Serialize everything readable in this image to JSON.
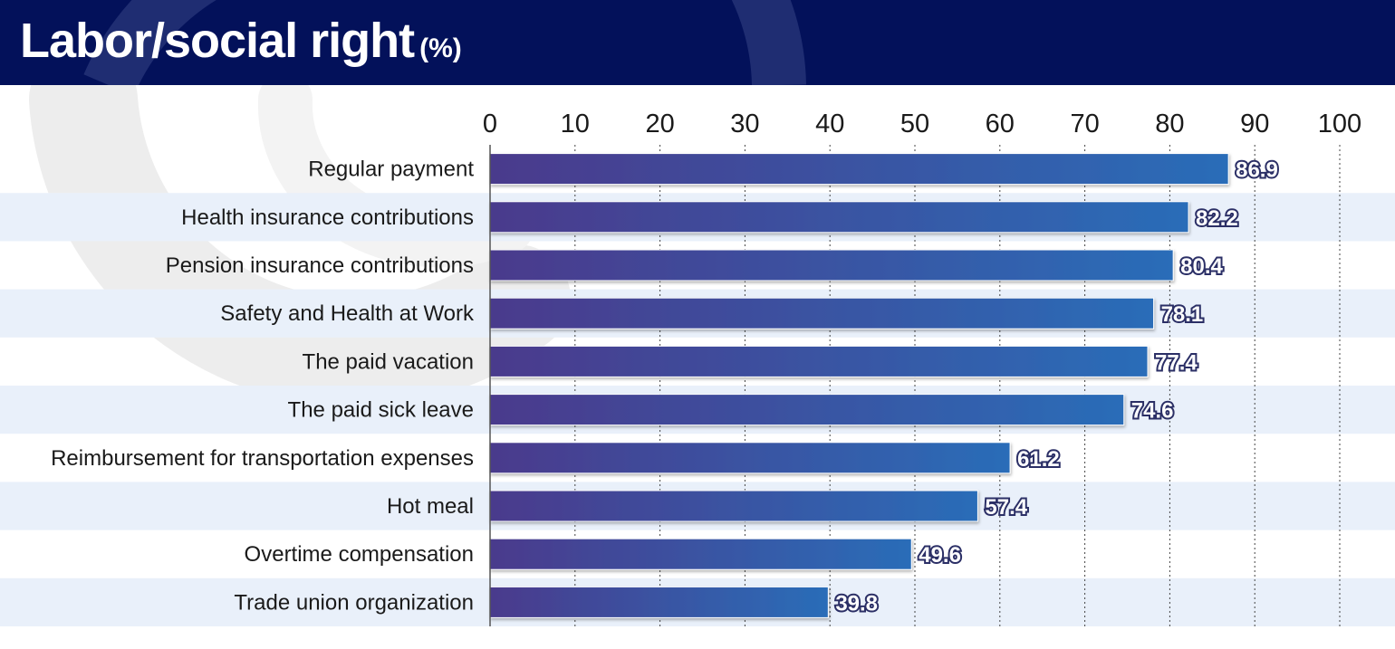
{
  "header": {
    "title": "Labor/social right",
    "title_unit": "(%)"
  },
  "colors": {
    "header_bg": "#03115a",
    "bar_start": "#4a3a8c",
    "bar_end": "#2a6db8",
    "stripe": "#e9f0fa"
  },
  "chart_data": {
    "type": "bar",
    "orientation": "horizontal",
    "title": "Labor/social right (%)",
    "xlabel": "",
    "ylabel": "",
    "xlim": [
      0,
      100
    ],
    "xticks": [
      0,
      10,
      20,
      30,
      40,
      50,
      60,
      70,
      80,
      90,
      100
    ],
    "grid": "vertical dashed",
    "axis_position": "top",
    "categories": [
      "Regular payment",
      "Health insurance contributions",
      "Pension insurance contributions",
      "Safety and Health at Work",
      "The paid vacation",
      "The paid sick leave",
      "Reimbursement for transportation expenses",
      "Hot meal",
      "Overtime compensation",
      "Trade union organization"
    ],
    "values": [
      86.9,
      82.2,
      80.4,
      78.1,
      77.4,
      74.6,
      61.2,
      57.4,
      49.6,
      39.8
    ],
    "value_labels": [
      "86.9",
      "82.2",
      "80.4",
      "78.1",
      "77.4",
      "74.6",
      "61.2",
      "57.4",
      "49.6",
      "39.8"
    ]
  }
}
